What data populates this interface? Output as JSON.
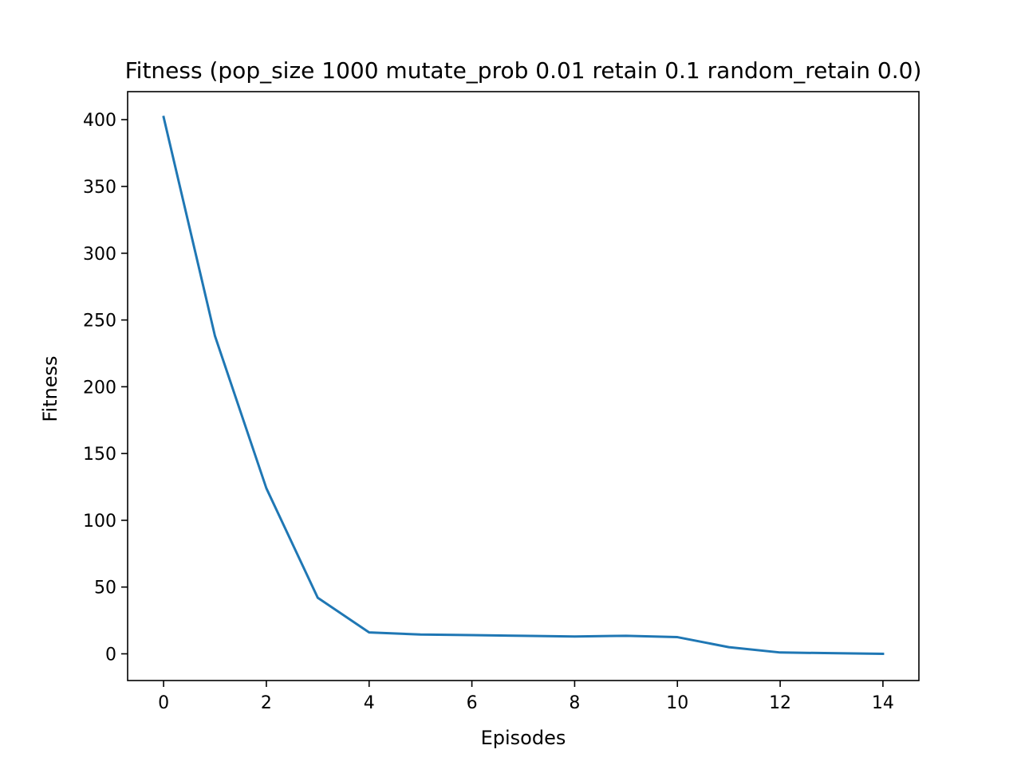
{
  "chart_data": {
    "type": "line",
    "title": "Fitness (pop_size 1000 mutate_prob 0.01 retain 0.1 random_retain 0.0)",
    "xlabel": "Episodes",
    "ylabel": "Fitness",
    "xlim": [
      -0.7,
      14.7
    ],
    "ylim": [
      -20,
      421
    ],
    "xticks": [
      0,
      2,
      4,
      6,
      8,
      10,
      12,
      14
    ],
    "yticks": [
      0,
      50,
      100,
      150,
      200,
      250,
      300,
      350,
      400
    ],
    "grid": false,
    "series": [
      {
        "color": "#1f77b4",
        "x": [
          0,
          1,
          2,
          3,
          4,
          5,
          6,
          7,
          8,
          9,
          10,
          11,
          12,
          13,
          14
        ],
        "y": [
          402,
          238,
          124,
          42,
          16,
          14.5,
          14,
          13.5,
          13,
          13.5,
          12.5,
          5,
          1,
          0.5,
          0
        ]
      }
    ]
  }
}
